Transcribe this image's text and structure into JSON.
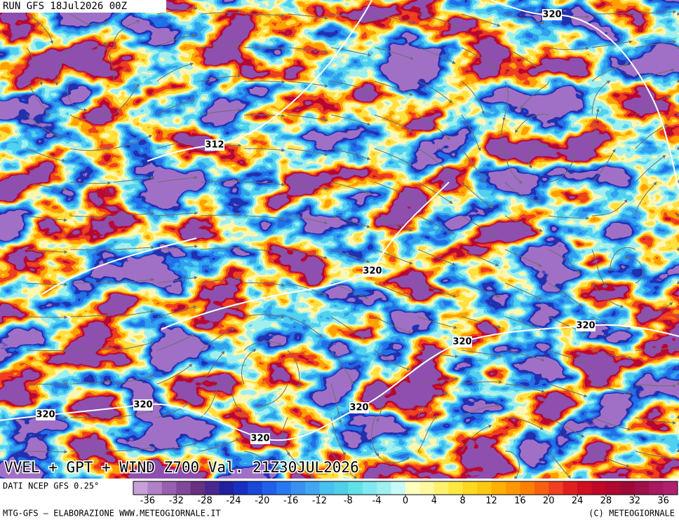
{
  "header": {
    "run": "RUN GFS 18Jul2026 00Z"
  },
  "map": {
    "title": "VVEL + GPT + WIND Z700 Val. 21Z30JUL2026",
    "contour_labels": [
      "320",
      "312",
      "320",
      "320",
      "320",
      "320",
      "320",
      "320",
      "320"
    ]
  },
  "legend": {
    "source": "DATI NCEP GFS 0.25°",
    "range": [
      -38,
      38
    ],
    "ticks": [
      -36,
      -32,
      -28,
      -24,
      -20,
      -16,
      -12,
      -8,
      -4,
      0,
      4,
      8,
      12,
      16,
      20,
      24,
      28,
      32,
      36
    ],
    "colors": [
      "#c8a0d8",
      "#b080c8",
      "#9860b0",
      "#804898",
      "#683080",
      "#482890",
      "#2020a0",
      "#1830c0",
      "#1848d8",
      "#2060e8",
      "#2878f0",
      "#3890f0",
      "#40a8f0",
      "#48c0f0",
      "#50d0e8",
      "#60e0e8",
      "#80e8f0",
      "#a0f0f0",
      "#c8f8f8",
      "#ffffc0",
      "#fff8a0",
      "#fff070",
      "#ffe840",
      "#ffd820",
      "#ffc810",
      "#ffb000",
      "#ff9800",
      "#ff8000",
      "#f86010",
      "#f04020",
      "#e02020",
      "#d01020",
      "#c00828",
      "#b00830",
      "#a00838",
      "#a01048",
      "#a81860",
      "#b02070"
    ]
  },
  "footer": {
    "credit": "MTG-GFS — ELABORAZIONE WWW.METEOGIORNALE.IT",
    "copyright": "(C) METEOGIORNALE"
  }
}
